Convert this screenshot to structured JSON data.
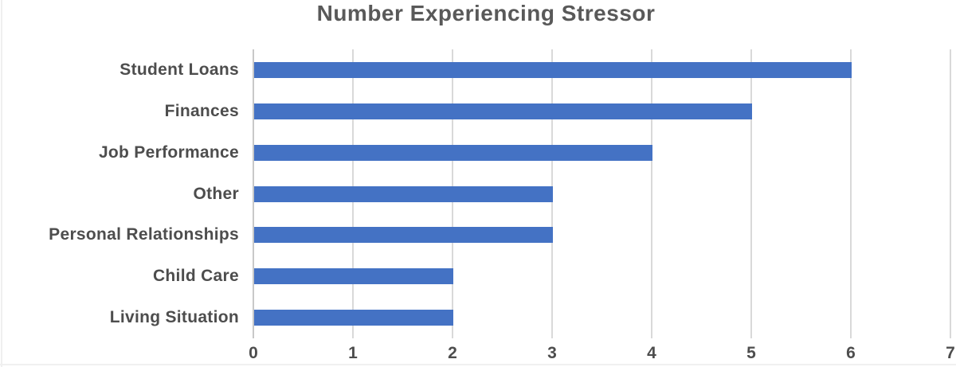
{
  "chart_data": {
    "type": "bar",
    "orientation": "horizontal",
    "title": "Number Experiencing Stressor",
    "categories": [
      "Student Loans",
      "Finances",
      "Job Performance",
      "Other",
      "Personal Relationships",
      "Child Care",
      "Living Situation"
    ],
    "values": [
      6,
      5,
      4,
      3,
      3,
      2,
      2
    ],
    "xlabel": "",
    "ylabel": "",
    "xlim": [
      0,
      7
    ],
    "xticks": [
      0,
      1,
      2,
      3,
      4,
      5,
      6,
      7
    ],
    "grid": true,
    "legend": false,
    "colors": {
      "bar": "#4472C4",
      "gridline": "#D9D9D9",
      "axis_line": "#C8C8C8",
      "title_text": "#595959",
      "label_text": "#4D4D4D"
    }
  }
}
